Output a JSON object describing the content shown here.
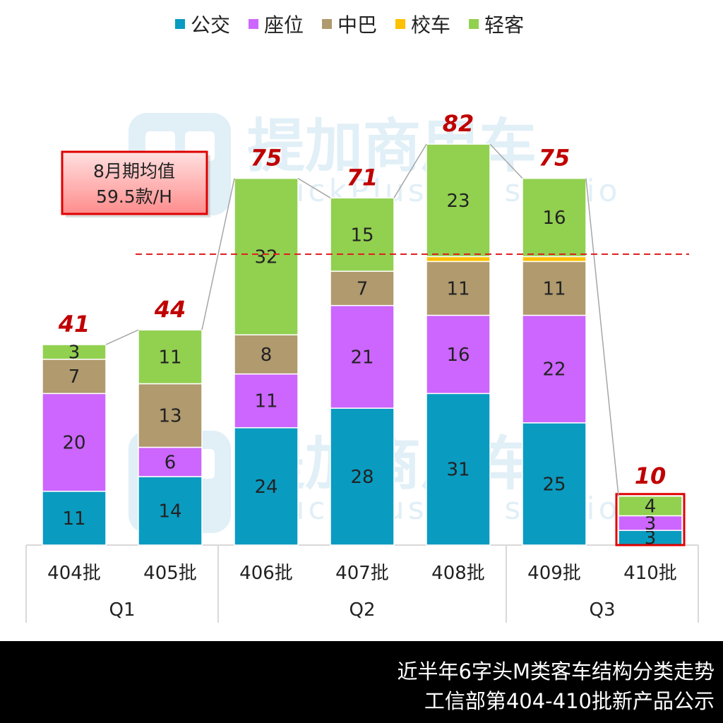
{
  "chart_data": {
    "type": "bar",
    "stacked": true,
    "categories": [
      "404批",
      "405批",
      "406批",
      "407批",
      "408批",
      "409批",
      "410批"
    ],
    "groups": [
      {
        "label": "Q1",
        "categories": [
          "404批",
          "405批"
        ]
      },
      {
        "label": "Q2",
        "categories": [
          "406批",
          "407批",
          "408批"
        ]
      },
      {
        "label": "Q3",
        "categories": [
          "409批",
          "410批"
        ]
      }
    ],
    "series": [
      {
        "name": "公交",
        "color": "#0A9BC0",
        "values": [
          11,
          14,
          24,
          28,
          31,
          25,
          3
        ]
      },
      {
        "name": "座位",
        "color": "#CC66FF",
        "values": [
          20,
          6,
          11,
          21,
          16,
          22,
          3
        ]
      },
      {
        "name": "中巴",
        "color": "#B09A6E",
        "values": [
          7,
          13,
          8,
          7,
          11,
          11,
          0
        ]
      },
      {
        "name": "校车",
        "color": "#FFC000",
        "values": [
          0,
          0,
          0,
          0,
          1,
          1,
          0
        ]
      },
      {
        "name": "轻客",
        "color": "#92D050",
        "values": [
          3,
          11,
          32,
          15,
          23,
          16,
          4
        ]
      }
    ],
    "totals": [
      41,
      44,
      75,
      71,
      82,
      75,
      10
    ],
    "highlighted_category": "410批",
    "reference_line": {
      "value": 59.5,
      "color": "#E02020",
      "style": "dashed"
    },
    "annotation": {
      "line1": "8月期均值",
      "line2": "59.5款/H"
    },
    "legend_position": "top",
    "ylim": [
      0,
      85
    ]
  },
  "watermark": {
    "logo_text": "提加商用车",
    "sub_text": "TruckPlus CV studio"
  },
  "caption": {
    "line1": "近半年6字头M类客车结构分类走势",
    "line2": "工信部第404-410批新产品公示"
  },
  "colors": {
    "total_label": "#C00000",
    "axis": "#D9D9D9",
    "caption_bg": "#000000"
  }
}
